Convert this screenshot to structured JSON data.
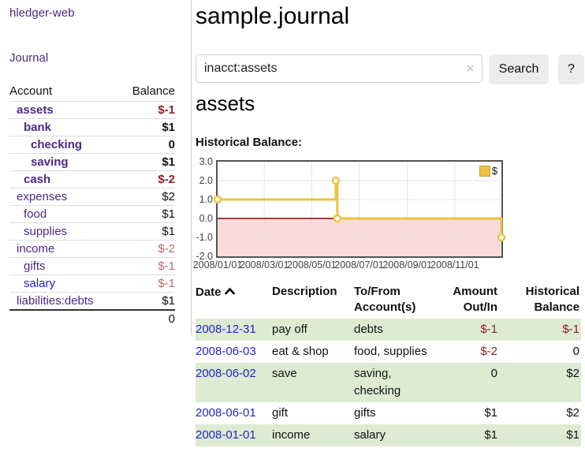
{
  "app": {
    "title": "hledger-web",
    "nav_journal": "Journal"
  },
  "sidebar": {
    "headers": [
      "Account",
      "Balance"
    ],
    "rows": [
      {
        "account": "assets",
        "balance": "$-1"
      },
      {
        "account": "bank",
        "balance": "$1"
      },
      {
        "account": "checking",
        "balance": "0"
      },
      {
        "account": "saving",
        "balance": "$1"
      },
      {
        "account": "cash",
        "balance": "$-2"
      },
      {
        "account": "expenses",
        "balance": "$2"
      },
      {
        "account": "food",
        "balance": "$1"
      },
      {
        "account": "supplies",
        "balance": "$1"
      },
      {
        "account": "income",
        "balance": "$-2"
      },
      {
        "account": "gifts",
        "balance": "$-1"
      },
      {
        "account": "salary",
        "balance": "$-1"
      },
      {
        "account": "liabilities:debts",
        "balance": "$1"
      }
    ],
    "total": "0"
  },
  "main": {
    "title": "sample.journal",
    "search": {
      "value": "inacct:assets",
      "clear_icon": "✕",
      "search_button": "Search",
      "help_button": "?"
    },
    "account_heading": "assets",
    "chart_label": "Historical Balance:"
  },
  "chart_data": {
    "type": "line",
    "step": true,
    "title": "Historical Balance:",
    "series": [
      {
        "name": "$",
        "color": "#edc240",
        "points": [
          [
            "2008-01-01",
            1
          ],
          [
            "2008-06-01",
            2
          ],
          [
            "2008-06-03",
            0
          ],
          [
            "2008-12-31",
            -1
          ]
        ]
      }
    ],
    "x_range": [
      "2008-01-01",
      "2008-12-31"
    ],
    "ylim": [
      -2,
      3
    ],
    "yticks": [
      "3.0",
      "2.0",
      "1.0",
      "0.0",
      "-1.0",
      "-2.0"
    ],
    "xticks": [
      "2008/01/01",
      "2008/03/01",
      "2008/05/01",
      "2008/07/01",
      "2008/09/01",
      "2008/11/01"
    ],
    "negative_fill": "#fbdada",
    "zero_line_color": "#8b0000",
    "grid": true,
    "legend_position": "top-right"
  },
  "register": {
    "headers": {
      "date": "Date",
      "description": "Description",
      "tofrom": "To/From Account(s)",
      "amount": "Amount Out/In",
      "balance": "Historical Balance"
    },
    "rows": [
      {
        "date": "2008-12-31",
        "description": "pay off",
        "accounts": "debts",
        "amount": "$-1",
        "balance": "$-1"
      },
      {
        "date": "2008-06-03",
        "description": "eat & shop",
        "accounts": "food, supplies",
        "amount": "$-2",
        "balance": "0"
      },
      {
        "date": "2008-06-02",
        "description": "save",
        "accounts": "saving, checking",
        "amount": "0",
        "balance": "$2"
      },
      {
        "date": "2008-06-01",
        "description": "gift",
        "accounts": "gifts",
        "amount": "$1",
        "balance": "$2"
      },
      {
        "date": "2008-01-01",
        "description": "income",
        "accounts": "salary",
        "amount": "$1",
        "balance": "$1"
      }
    ]
  }
}
